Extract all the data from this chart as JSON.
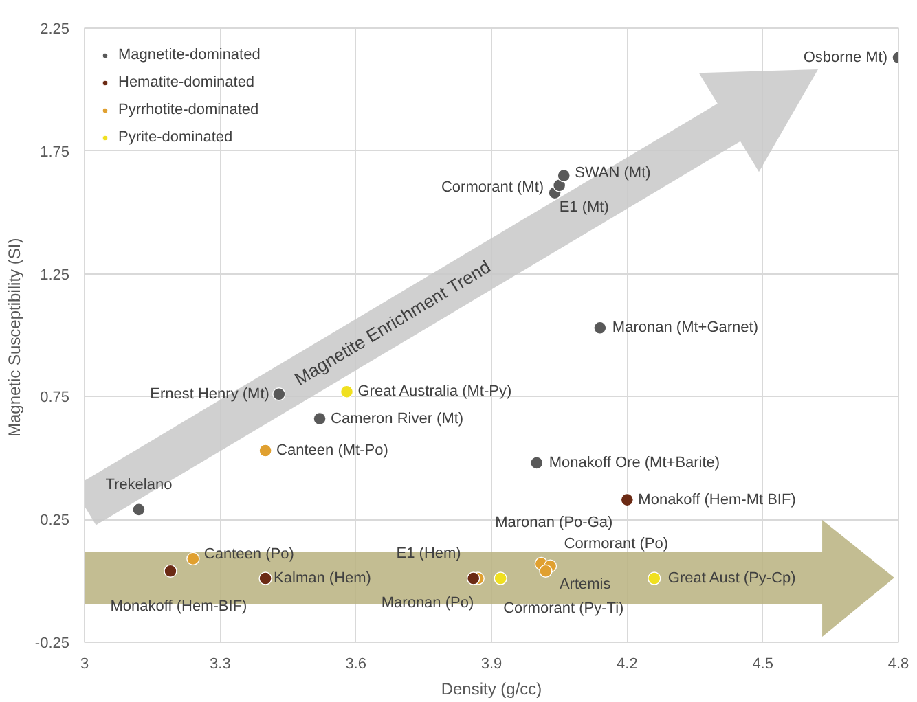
{
  "chart_data": {
    "type": "scatter",
    "xlabel": "Density (g/cc)",
    "ylabel": "Magnetic Susceptibility  (SI)",
    "xlim": [
      3,
      4.8
    ],
    "xticks": [
      3,
      3.3,
      3.6,
      3.9,
      4.2,
      4.5,
      4.8
    ],
    "ylim": [
      -0.25,
      2.25
    ],
    "yticks": [
      -0.25,
      0.25,
      0.75,
      1.25,
      1.75,
      2.25
    ],
    "grid": true,
    "legend": "top left",
    "marker": "circle",
    "series": [
      {
        "name": "Magnetite-dominated",
        "color": "#595959",
        "x": [
          4.8,
          4.04,
          4.05,
          4.06,
          4.14,
          3.43,
          3.52,
          3.12,
          4.0
        ],
        "values": [
          2.13,
          1.58,
          1.61,
          1.65,
          1.03,
          0.76,
          0.66,
          0.29,
          0.48
        ]
      },
      {
        "name": "Hematite-dominated",
        "color": "#6b2a14",
        "x": [
          4.2,
          3.19,
          3.4,
          3.86
        ],
        "values": [
          0.33,
          0.04,
          0.01,
          0.01
        ]
      },
      {
        "name": "Pyrrhotite-dominated",
        "color": "#e0a030",
        "x": [
          3.4,
          3.24,
          3.87,
          4.01,
          4.03,
          4.02
        ],
        "values": [
          0.53,
          0.09,
          0.01,
          0.07,
          0.06,
          0.04
        ]
      },
      {
        "name": "Pyrite-dominated",
        "color": "#f0e020",
        "x": [
          3.58,
          3.92,
          4.26
        ],
        "values": [
          0.77,
          0.01,
          0.01
        ]
      }
    ],
    "annotations": [
      {
        "text": "Osborne Mt)",
        "x": 4.8,
        "y": 2.13
      },
      {
        "text": "Cormorant (Mt)",
        "x": 4.04,
        "y": 1.58
      },
      {
        "text": "E1 (Mt)",
        "x": 4.05,
        "y": 1.61
      },
      {
        "text": "SWAN (Mt)",
        "x": 4.06,
        "y": 1.65
      },
      {
        "text": "Maronan (Mt+Garnet)",
        "x": 4.14,
        "y": 1.03
      },
      {
        "text": "Ernest Henry (Mt)",
        "x": 3.43,
        "y": 0.76
      },
      {
        "text": "Cameron River (Mt)",
        "x": 3.52,
        "y": 0.66
      },
      {
        "text": "Trekelano",
        "x": 3.12,
        "y": 0.29
      },
      {
        "text": "Monakoff Ore (Mt+Barite)",
        "x": 4.0,
        "y": 0.48
      },
      {
        "text": "Monakoff (Hem-Mt BIF)",
        "x": 4.2,
        "y": 0.33
      },
      {
        "text": "Monakoff (Hem-BIF)",
        "x": 3.19,
        "y": 0.04
      },
      {
        "text": "Kalman (Hem)",
        "x": 3.4,
        "y": 0.01
      },
      {
        "text": "E1 (Hem)",
        "x": 3.86,
        "y": 0.01
      },
      {
        "text": "Canteen (Mt-Po)",
        "x": 3.4,
        "y": 0.53
      },
      {
        "text": "Canteen (Po)",
        "x": 3.24,
        "y": 0.09
      },
      {
        "text": "Maronan (Po)",
        "x": 3.87,
        "y": 0.01
      },
      {
        "text": "Maronan (Po-Ga)",
        "x": 4.01,
        "y": 0.07
      },
      {
        "text": "Cormorant (Po)",
        "x": 4.03,
        "y": 0.06
      },
      {
        "text": "Artemis",
        "x": 4.02,
        "y": 0.04
      },
      {
        "text": "Great Australia (Mt-Py)",
        "x": 3.58,
        "y": 0.77
      },
      {
        "text": "Cormorant (Py-Ti)",
        "x": 3.92,
        "y": 0.01
      },
      {
        "text": "Great  Aust (Py-Cp)",
        "x": 4.26,
        "y": 0.01
      },
      "Magnetite Enrichment Trend"
    ]
  }
}
